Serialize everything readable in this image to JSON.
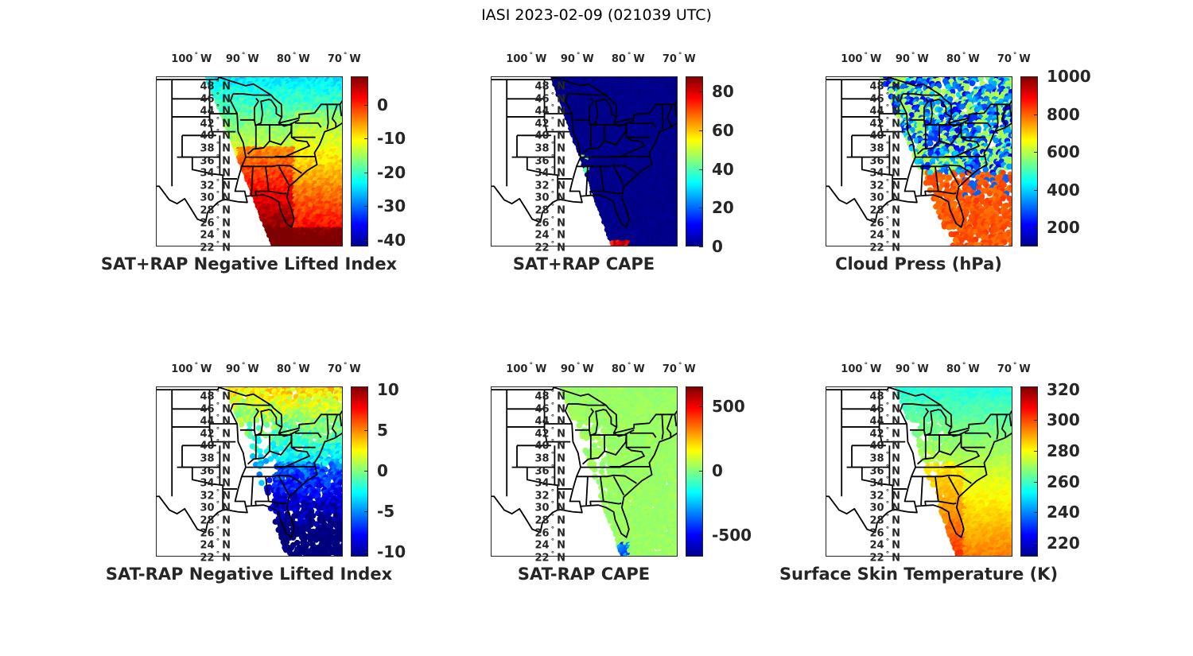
{
  "figure_title": "IASI 2023-02-09 (021039 UTC)",
  "lon_labels": [
    "100",
    "90",
    "80",
    "70"
  ],
  "lon_suffix": "W",
  "lat_labels": [
    "48",
    "46",
    "44",
    "42",
    "40",
    "38",
    "36",
    "34",
    "32",
    "30",
    "28",
    "26",
    "24",
    "22"
  ],
  "lat_suffix": "N",
  "degree_symbol": "°",
  "chart_data": [
    {
      "type": "heatmap",
      "title": "SAT+RAP Negative Lifted Index",
      "colormap": "jet",
      "clim": [
        -42,
        8.5
      ],
      "ticks": [
        "0",
        "-10",
        "-20",
        "-30",
        "-40"
      ],
      "tick_values": [
        0,
        -10,
        -20,
        -30,
        -40
      ]
    },
    {
      "type": "heatmap",
      "title": "SAT+RAP CAPE",
      "colormap": "jet",
      "clim": [
        0,
        88
      ],
      "ticks": [
        "80",
        "60",
        "40",
        "20",
        "0"
      ],
      "tick_values": [
        80,
        60,
        40,
        20,
        0
      ]
    },
    {
      "type": "heatmap",
      "title": "Cloud Press (hPa)",
      "colormap": "jet",
      "clim": [
        100,
        1000
      ],
      "ticks": [
        "1000",
        "800",
        "600",
        "400",
        "200"
      ],
      "tick_values": [
        1000,
        800,
        600,
        400,
        200
      ]
    },
    {
      "type": "heatmap",
      "title": "SAT-RAP Negative Lifted Index",
      "colormap": "jet",
      "clim": [
        -10.6,
        10.4
      ],
      "ticks": [
        "10",
        "5",
        "0",
        "-5",
        "-10"
      ],
      "tick_values": [
        10,
        5,
        0,
        -5,
        -10
      ]
    },
    {
      "type": "heatmap",
      "title": "SAT-RAP CAPE",
      "colormap": "jet",
      "clim": [
        -667,
        654
      ],
      "ticks": [
        "500",
        "0",
        "-500"
      ],
      "tick_values": [
        500,
        0,
        -500
      ]
    },
    {
      "type": "heatmap",
      "title": "Surface Skin Temperature (K)",
      "colormap": "jet",
      "clim": [
        211,
        322
      ],
      "ticks": [
        "320",
        "300",
        "280",
        "260",
        "240",
        "220"
      ],
      "tick_values": [
        320,
        300,
        280,
        260,
        240,
        220
      ]
    }
  ]
}
